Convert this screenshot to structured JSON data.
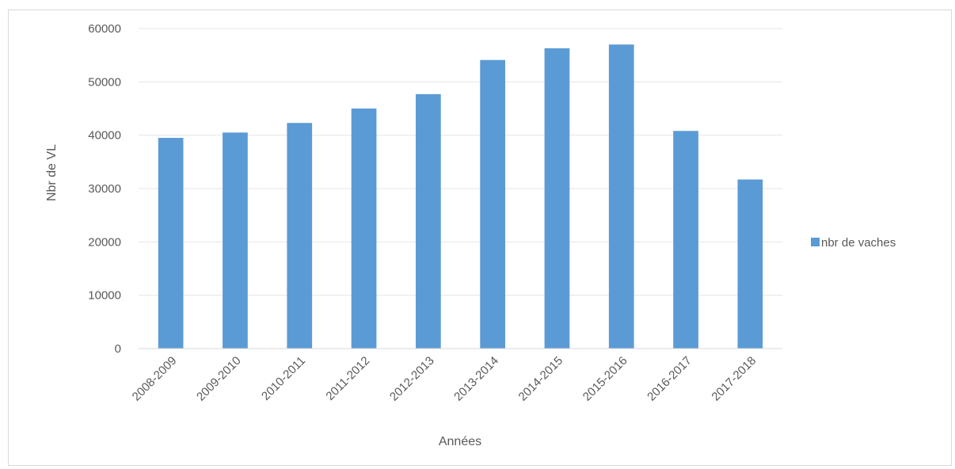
{
  "chart_data": {
    "type": "bar",
    "title": "",
    "xlabel": "Années",
    "ylabel": "Nbr de VL",
    "categories": [
      "2008-2009",
      "2009-2010",
      "2010-2011",
      "2011-2012",
      "2012-2013",
      "2013-2014",
      "2014-2015",
      "2015-2016",
      "2016-2017",
      "2017-2018"
    ],
    "series": [
      {
        "name": "nbr de vaches",
        "values": [
          39500,
          40500,
          42300,
          45000,
          47700,
          54100,
          56300,
          57000,
          40800,
          31700
        ],
        "color": "#5b9bd5"
      }
    ],
    "ylim": [
      0,
      60000
    ],
    "yticks": [
      0,
      10000,
      20000,
      30000,
      40000,
      50000,
      60000
    ],
    "ytick_labels": [
      "0",
      "10000",
      "20000",
      "30000",
      "40000",
      "50000",
      "60000"
    ],
    "grid": true,
    "legend_position": "right",
    "grid_color": "#e6e6e6",
    "text_color": "#595959"
  }
}
